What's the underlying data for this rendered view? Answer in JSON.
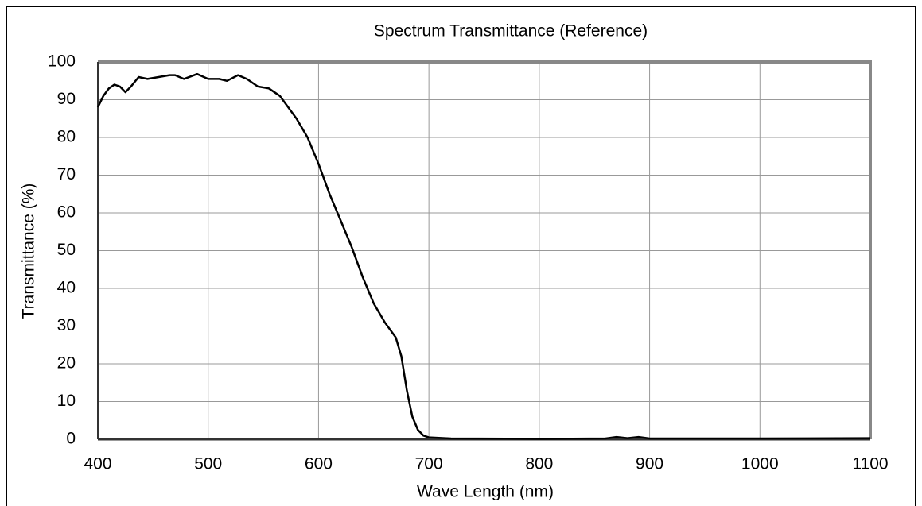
{
  "chart_data": {
    "type": "line",
    "title": "Spectrum Transmittance (Reference)",
    "x_label": "Wave Length (nm)",
    "y_label": "Transmittance (%)",
    "x": [
      400,
      405,
      410,
      415,
      420,
      425,
      430,
      437,
      445,
      455,
      465,
      470,
      478,
      490,
      500,
      510,
      517,
      527,
      535,
      545,
      555,
      565,
      580,
      590,
      600,
      610,
      620,
      630,
      640,
      650,
      660,
      670,
      675,
      680,
      685,
      690,
      695,
      700,
      720,
      800,
      860,
      870,
      880,
      890,
      900,
      1000,
      1100
    ],
    "values": [
      88,
      91,
      93,
      94,
      93.5,
      92,
      93.5,
      96,
      95.5,
      96,
      96.5,
      96.5,
      95.5,
      96.8,
      95.5,
      95.5,
      95,
      96.5,
      95.5,
      93.5,
      93,
      91,
      85,
      80,
      73,
      65,
      58,
      51,
      43,
      36,
      31,
      27,
      22,
      13,
      6,
      2.5,
      1,
      0.5,
      0.2,
      0.1,
      0.2,
      0.6,
      0.3,
      0.6,
      0.2,
      0.2,
      0.3
    ],
    "color": "#000000",
    "xlim": [
      400,
      1100
    ],
    "xticks": [
      400,
      500,
      600,
      700,
      800,
      900,
      1000,
      1100
    ],
    "ylim": [
      0,
      100
    ],
    "yticks": [
      0,
      10,
      20,
      30,
      40,
      50,
      60,
      70,
      80,
      90,
      100
    ],
    "grid": true
  }
}
